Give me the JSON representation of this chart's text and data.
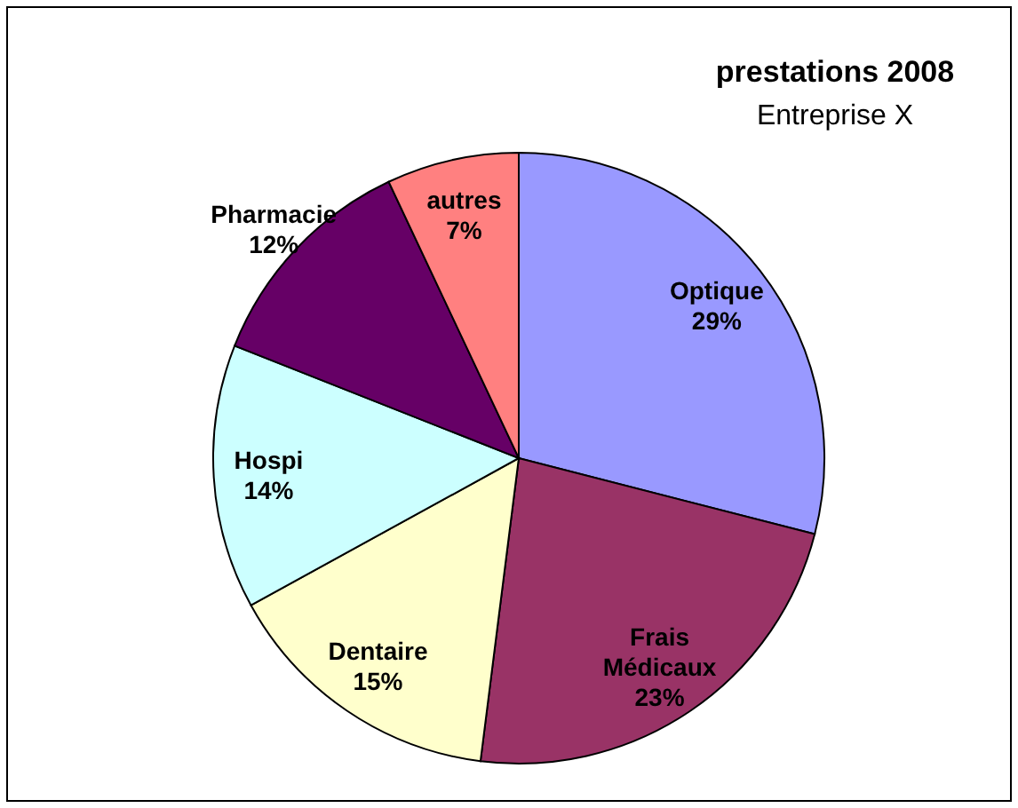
{
  "chart_data": {
    "type": "pie",
    "title": "prestations 2008",
    "subtitle": "Entreprise X",
    "categories": [
      "Optique",
      "Frais Médicaux",
      "Dentaire",
      "Hospi",
      "Pharmacie",
      "autres"
    ],
    "values": [
      29,
      23,
      15,
      14,
      12,
      7
    ],
    "colors": [
      "#9999ff",
      "#993366",
      "#ffffcc",
      "#ccffff",
      "#660066",
      "#ff8080"
    ],
    "value_labels": [
      "29%",
      "23%",
      "15%",
      "14%",
      "12%",
      "7%"
    ]
  }
}
